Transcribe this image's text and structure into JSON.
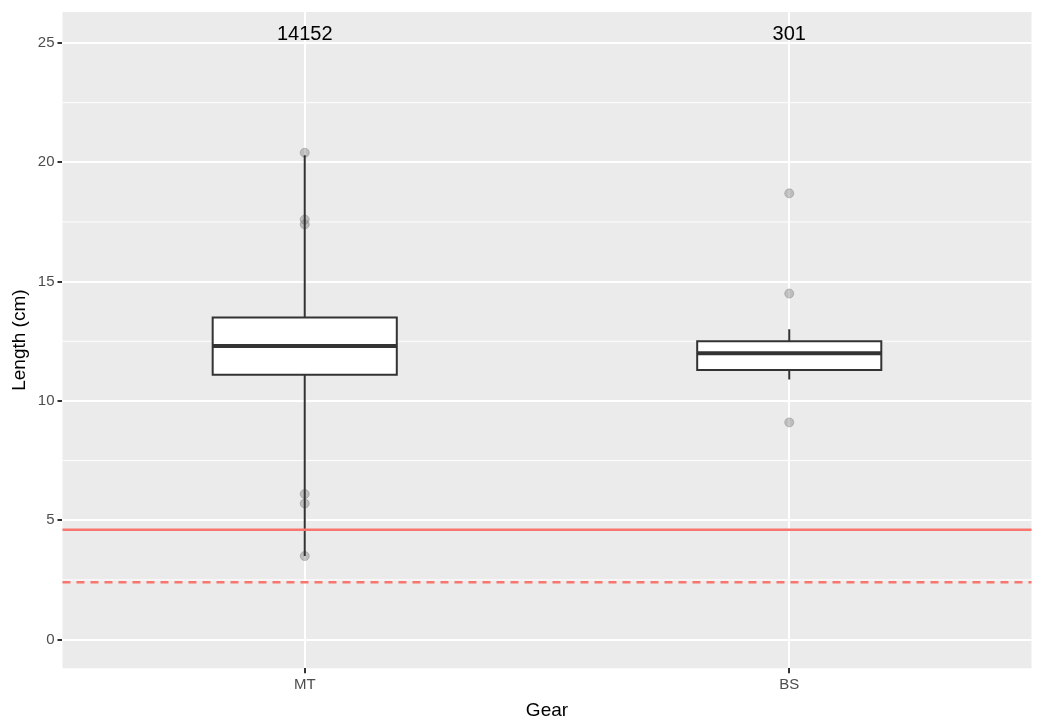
{
  "chart_data": {
    "type": "box",
    "xlabel": "Gear",
    "ylabel": "Length (cm)",
    "categories": [
      "MT",
      "BS"
    ],
    "boxes": [
      {
        "low": 3.5,
        "q1": 11.1,
        "median": 12.3,
        "q3": 13.5,
        "high": 20.3,
        "outliers": [
          20.4,
          17.6,
          17.4,
          6.1,
          5.7,
          3.5
        ]
      },
      {
        "low": 10.9,
        "q1": 11.3,
        "median": 12.0,
        "q3": 12.5,
        "high": 13.0,
        "outliers": [
          18.7,
          14.5,
          9.1
        ]
      }
    ],
    "ylim": [
      -1.2,
      26.3
    ],
    "yticks": [
      0,
      5,
      10,
      15,
      20,
      25
    ],
    "grid": true,
    "ref_lines": [
      {
        "axis": "y",
        "value": 4.6,
        "color": "#f8766d",
        "line_style": "solid"
      },
      {
        "axis": "y",
        "value": 2.4,
        "color": "#f8766d",
        "line_style": "dashed"
      }
    ],
    "annotations": [
      "14152",
      "301"
    ]
  }
}
